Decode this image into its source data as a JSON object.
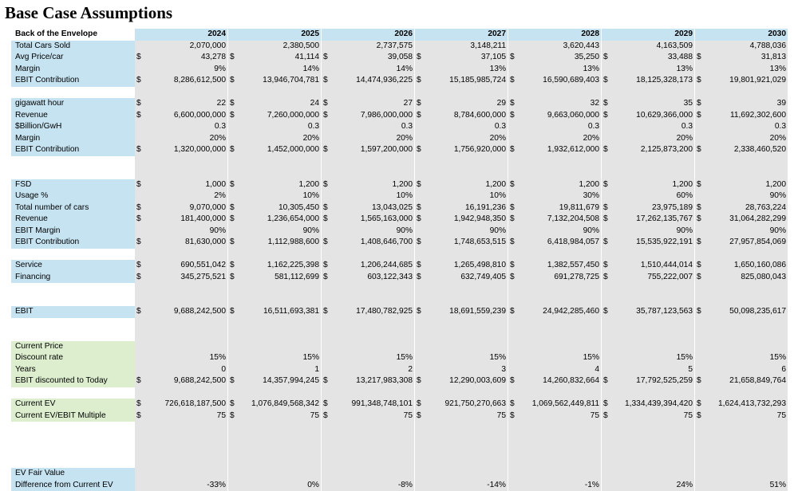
{
  "title": "Base Case Assumptions",
  "header": {
    "label": "Back of the Envelope",
    "years": [
      "2024",
      "2025",
      "2026",
      "2027",
      "2028",
      "2029",
      "2030"
    ]
  },
  "rows": [
    {
      "label": "Total Cars Sold",
      "style": "blue",
      "dollar": false,
      "values": [
        "2,070,000",
        "2,380,500",
        "2,737,575",
        "3,148,211",
        "3,620,443",
        "4,163,509",
        "4,788,036"
      ]
    },
    {
      "label": "Avg Price/car",
      "style": "blue",
      "dollar": true,
      "values": [
        "43,278",
        "41,114",
        "39,058",
        "37,105",
        "35,250",
        "33,488",
        "31,813"
      ]
    },
    {
      "label": "Margin",
      "style": "blue",
      "dollar": false,
      "values": [
        "9%",
        "14%",
        "14%",
        "13%",
        "13%",
        "13%",
        "13%"
      ]
    },
    {
      "label": "EBIT Contribution",
      "style": "blue",
      "dollar": true,
      "values": [
        "8,286,612,500",
        "13,946,704,781",
        "14,474,936,225",
        "15,185,985,724",
        "16,590,689,403",
        "18,125,328,173",
        "19,801,921,029"
      ]
    },
    {
      "label": "",
      "style": "blank",
      "dollar": false,
      "values": [
        "",
        "",
        "",
        "",
        "",
        "",
        ""
      ]
    },
    {
      "label": "gigawatt hour",
      "style": "blue",
      "dollar": true,
      "values": [
        "22",
        "24",
        "27",
        "29",
        "32",
        "35",
        "39"
      ]
    },
    {
      "label": "Revenue",
      "style": "blue",
      "dollar": true,
      "values": [
        "6,600,000,000",
        "7,260,000,000",
        "7,986,000,000",
        "8,784,600,000",
        "9,663,060,000",
        "10,629,366,000",
        "11,692,302,600"
      ]
    },
    {
      "label": "$Billion/GwH",
      "style": "blue",
      "dollar": false,
      "values": [
        "0.3",
        "0.3",
        "0.3",
        "0.3",
        "0.3",
        "0.3",
        "0.3"
      ]
    },
    {
      "label": "Margin",
      "style": "blue",
      "dollar": false,
      "values": [
        "20%",
        "20%",
        "20%",
        "20%",
        "20%",
        "20%",
        "20%"
      ]
    },
    {
      "label": "EBIT Contribution",
      "style": "blue",
      "dollar": true,
      "values": [
        "1,320,000,000",
        "1,452,000,000",
        "1,597,200,000",
        "1,756,920,000",
        "1,932,612,000",
        "2,125,873,200",
        "2,338,460,520"
      ]
    },
    {
      "label": "",
      "style": "blank",
      "dollar": false,
      "values": [
        "",
        "",
        "",
        "",
        "",
        "",
        ""
      ]
    },
    {
      "label": "",
      "style": "blank",
      "dollar": false,
      "values": [
        "",
        "",
        "",
        "",
        "",
        "",
        ""
      ]
    },
    {
      "label": "FSD",
      "style": "blue",
      "dollar": true,
      "values": [
        "1,000",
        "1,200",
        "1,200",
        "1,200",
        "1,200",
        "1,200",
        "1,200"
      ]
    },
    {
      "label": "Usage %",
      "style": "blue",
      "dollar": false,
      "values": [
        "2%",
        "10%",
        "10%",
        "10%",
        "30%",
        "60%",
        "90%"
      ]
    },
    {
      "label": "Total number of cars",
      "style": "blue",
      "dollar": true,
      "values": [
        "9,070,000",
        "10,305,450",
        "13,043,025",
        "16,191,236",
        "19,811,679",
        "23,975,189",
        "28,763,224"
      ]
    },
    {
      "label": "Revenue",
      "style": "blue",
      "dollar": true,
      "values": [
        "181,400,000",
        "1,236,654,000",
        "1,565,163,000",
        "1,942,948,350",
        "7,132,204,508",
        "17,262,135,767",
        "31,064,282,299"
      ]
    },
    {
      "label": "EBIT Margin",
      "style": "blue",
      "dollar": false,
      "values": [
        "90%",
        "90%",
        "90%",
        "90%",
        "90%",
        "90%",
        "90%"
      ]
    },
    {
      "label": "EBIT Contribution",
      "style": "blue",
      "dollar": true,
      "values": [
        "81,630,000",
        "1,112,988,600",
        "1,408,646,700",
        "1,748,653,515",
        "6,418,984,057",
        "15,535,922,191",
        "27,957,854,069"
      ]
    },
    {
      "label": "",
      "style": "blank",
      "dollar": false,
      "values": [
        "",
        "",
        "",
        "",
        "",
        "",
        ""
      ]
    },
    {
      "label": "Service",
      "style": "blue",
      "dollar": true,
      "values": [
        "690,551,042",
        "1,162,225,398",
        "1,206,244,685",
        "1,265,498,810",
        "1,382,557,450",
        "1,510,444,014",
        "1,650,160,086"
      ]
    },
    {
      "label": "Financing",
      "style": "blue",
      "dollar": true,
      "values": [
        "345,275,521",
        "581,112,699",
        "603,122,343",
        "632,749,405",
        "691,278,725",
        "755,222,007",
        "825,080,043"
      ]
    },
    {
      "label": "",
      "style": "blank",
      "dollar": false,
      "values": [
        "",
        "",
        "",
        "",
        "",
        "",
        ""
      ]
    },
    {
      "label": "",
      "style": "blank",
      "dollar": false,
      "values": [
        "",
        "",
        "",
        "",
        "",
        "",
        ""
      ]
    },
    {
      "label": "EBIT",
      "style": "blue",
      "dollar": true,
      "values": [
        "9,688,242,500",
        "16,511,693,381",
        "17,480,782,925",
        "18,691,559,239",
        "24,942,285,460",
        "35,787,123,563",
        "50,098,235,617"
      ]
    },
    {
      "label": "",
      "style": "blank",
      "dollar": false,
      "values": [
        "",
        "",
        "",
        "",
        "",
        "",
        ""
      ]
    },
    {
      "label": "",
      "style": "blank",
      "dollar": false,
      "values": [
        "",
        "",
        "",
        "",
        "",
        "",
        ""
      ]
    },
    {
      "label": "Current Price",
      "style": "green",
      "dollar": false,
      "values": [
        "",
        "",
        "",
        "",
        "",
        "",
        ""
      ]
    },
    {
      "label": "Discount rate",
      "style": "green",
      "dollar": false,
      "values": [
        "15%",
        "15%",
        "15%",
        "15%",
        "15%",
        "15%",
        "15%"
      ]
    },
    {
      "label": "Years",
      "style": "green",
      "dollar": false,
      "values": [
        "0",
        "1",
        "2",
        "3",
        "4",
        "5",
        "6"
      ]
    },
    {
      "label": "EBIT discounted to Today",
      "style": "green",
      "dollar": true,
      "values": [
        "9,688,242,500",
        "14,357,994,245",
        "13,217,983,308",
        "12,290,003,609",
        "14,260,832,664",
        "17,792,525,259",
        "21,658,849,764"
      ]
    },
    {
      "label": "",
      "style": "blank",
      "dollar": false,
      "values": [
        "",
        "",
        "",
        "",
        "",
        "",
        ""
      ]
    },
    {
      "label": "Current EV",
      "style": "green",
      "dollar": true,
      "values": [
        "726,618,187,500",
        "1,076,849,568,342",
        "991,348,748,101",
        "921,750,270,663",
        "1,069,562,449,811",
        "1,334,439,394,420",
        "1,624,413,732,293"
      ]
    },
    {
      "label": "Current EV/EBIT Multiple",
      "style": "green",
      "dollar": true,
      "values": [
        "75",
        "75",
        "75",
        "75",
        "75",
        "75",
        "75"
      ]
    },
    {
      "label": "",
      "style": "blank",
      "dollar": false,
      "values": [
        "",
        "",
        "",
        "",
        "",
        "",
        ""
      ]
    },
    {
      "label": "",
      "style": "blank",
      "dollar": false,
      "values": [
        "",
        "",
        "",
        "",
        "",
        "",
        ""
      ]
    },
    {
      "label": "",
      "style": "blank",
      "dollar": false,
      "values": [
        "",
        "",
        "",
        "",
        "",
        "",
        ""
      ]
    },
    {
      "label": "",
      "style": "blank",
      "dollar": false,
      "values": [
        "",
        "",
        "",
        "",
        "",
        "",
        ""
      ]
    },
    {
      "label": "EV Fair Value",
      "style": "blue",
      "dollar": false,
      "values": [
        "",
        "",
        "",
        "",
        "",
        "",
        ""
      ]
    },
    {
      "label": "Difference from Current EV",
      "style": "blue",
      "dollar": false,
      "values": [
        "-33%",
        "0%",
        "-8%",
        "-14%",
        "-1%",
        "24%",
        "51%"
      ]
    }
  ]
}
